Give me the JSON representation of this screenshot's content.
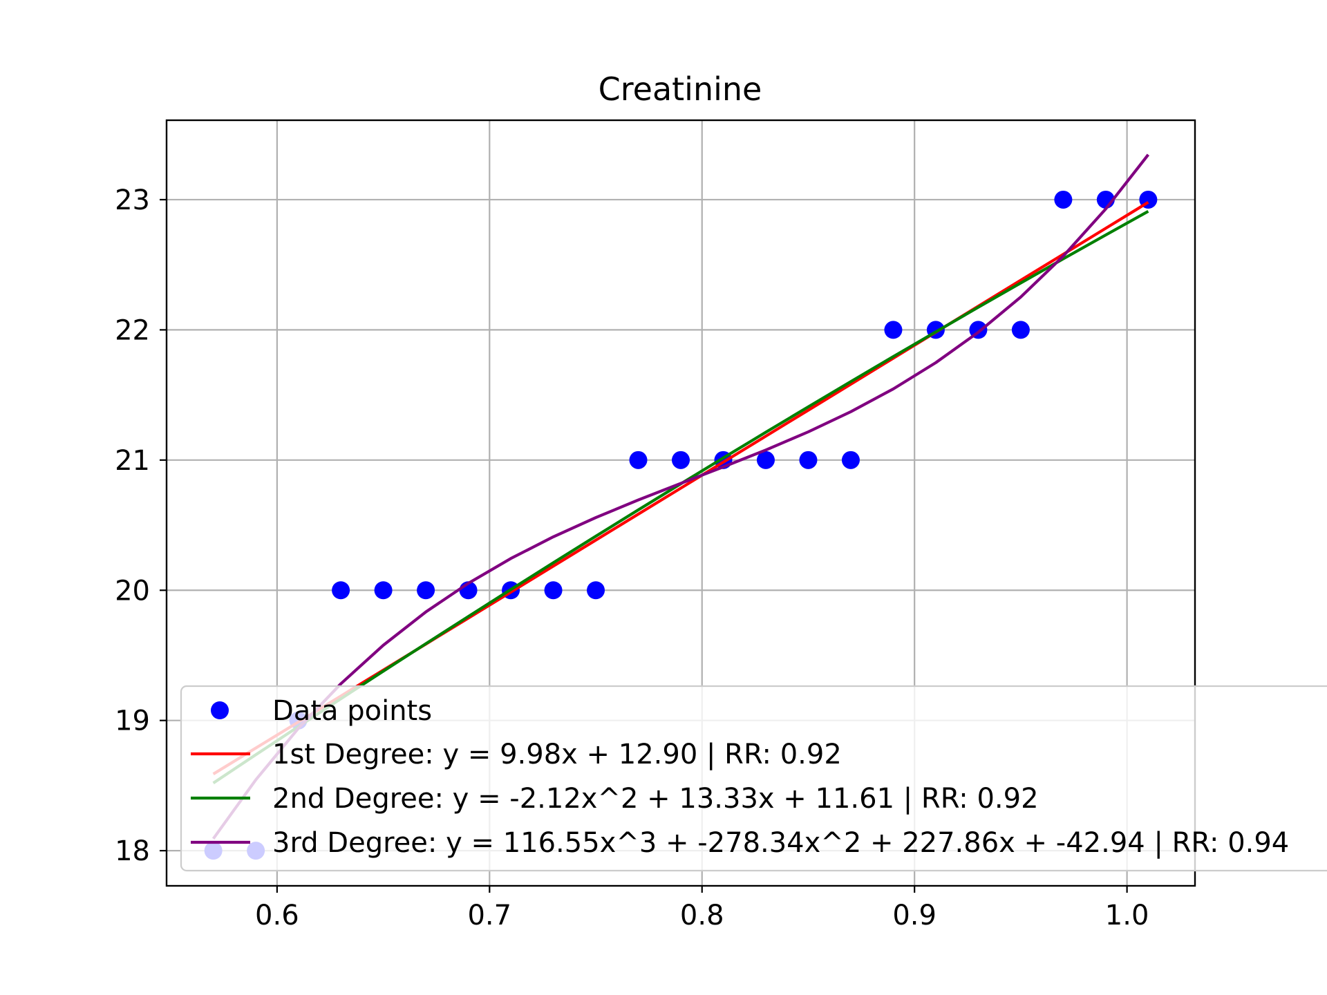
{
  "chart_data": {
    "type": "scatter",
    "title": "Creatinine",
    "xlabel": "",
    "ylabel": "",
    "xlim": [
      0.548,
      1.032
    ],
    "ylim": [
      17.73,
      23.61
    ],
    "xticks": [
      0.6,
      0.7,
      0.8,
      0.9,
      1.0
    ],
    "xtick_labels": [
      "0.6",
      "0.7",
      "0.8",
      "0.9",
      "1.0"
    ],
    "yticks": [
      18,
      19,
      20,
      21,
      22,
      23
    ],
    "ytick_labels": [
      "18",
      "19",
      "20",
      "21",
      "22",
      "23"
    ],
    "grid": true,
    "legend_placement": "lower-left",
    "scatter": {
      "name": "Data points",
      "color": "#0000ff",
      "x": [
        0.57,
        0.59,
        0.61,
        0.63,
        0.65,
        0.67,
        0.69,
        0.71,
        0.73,
        0.75,
        0.77,
        0.79,
        0.81,
        0.83,
        0.85,
        0.87,
        0.89,
        0.91,
        0.93,
        0.95,
        0.97,
        0.99,
        1.01
      ],
      "y": [
        18,
        18,
        19,
        20,
        20,
        20,
        20,
        20,
        20,
        20,
        21,
        21,
        21,
        21,
        21,
        21,
        22,
        22,
        22,
        22,
        23,
        23,
        23
      ]
    },
    "series": [
      {
        "name": "1st Degree: y = 9.98x + 12.90 | RR: 0.92",
        "color": "#ff0000",
        "degree": 1,
        "coefficients": [
          9.98,
          12.9
        ]
      },
      {
        "name": "2nd Degree: y = -2.12x^2 + 13.33x + 11.61 | RR: 0.92",
        "color": "#008000",
        "degree": 2,
        "coefficients": [
          -2.12,
          13.33,
          11.61
        ]
      },
      {
        "name": "3rd Degree: y = 116.55x^3 + -278.34x^2 + 227.86x + -42.94 | RR: 0.94",
        "color": "#800080",
        "degree": 3,
        "coefficients": [
          116.55,
          -278.34,
          227.86,
          -42.94
        ]
      }
    ],
    "fit_x_range": [
      0.57,
      1.01
    ]
  }
}
